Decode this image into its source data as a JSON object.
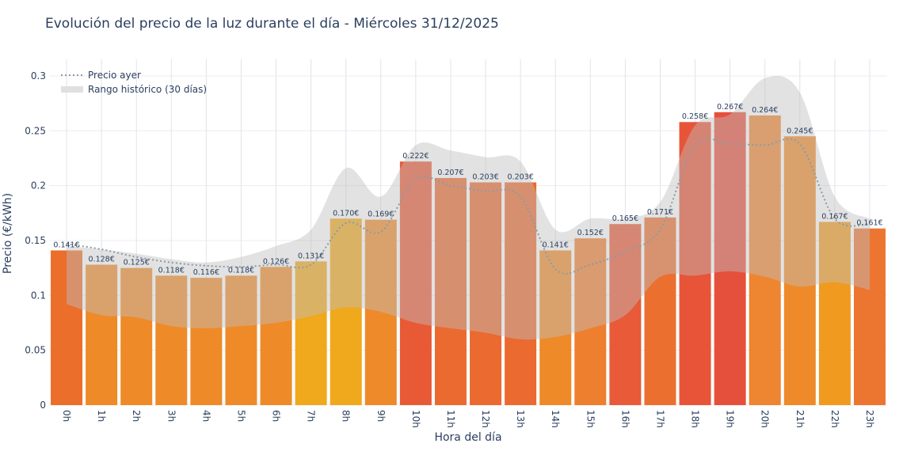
{
  "title": "Evolución del precio de la luz durante el día - Miércoles 31/12/2025",
  "chart_data": {
    "type": "bar",
    "title": "Evolución del precio de la luz durante el día - Miércoles 31/12/2025",
    "xlabel": "Hora del día",
    "ylabel": "Precio (€/kWh)",
    "ylim": [
      0,
      0.31
    ],
    "yticks": [
      0,
      0.05,
      0.1,
      0.15,
      0.2,
      0.25,
      0.3
    ],
    "ytick_labels": [
      "0",
      "0.05",
      "0.1",
      "0.15",
      "0.2",
      "0.25",
      "0.3"
    ],
    "grid": true,
    "legend_position": "top-left",
    "categories": [
      "0h",
      "1h",
      "2h",
      "3h",
      "4h",
      "5h",
      "6h",
      "7h",
      "8h",
      "9h",
      "10h",
      "11h",
      "12h",
      "13h",
      "14h",
      "15h",
      "16h",
      "17h",
      "18h",
      "19h",
      "20h",
      "21h",
      "22h",
      "23h"
    ],
    "values": [
      0.141,
      0.128,
      0.125,
      0.118,
      0.116,
      0.118,
      0.126,
      0.131,
      0.17,
      0.169,
      0.222,
      0.207,
      0.203,
      0.203,
      0.141,
      0.152,
      0.165,
      0.171,
      0.258,
      0.267,
      0.264,
      0.245,
      0.167,
      0.161
    ],
    "data_labels": [
      "0.141€",
      "0.128€",
      "0.125€",
      "0.118€",
      "0.116€",
      "0.118€",
      "0.126€",
      "0.131€",
      "0.170€",
      "0.169€",
      "0.222€",
      "0.207€",
      "0.203€",
      "0.203€",
      "0.141€",
      "0.152€",
      "0.165€",
      "0.171€",
      "0.258€",
      "0.267€",
      "0.264€",
      "0.245€",
      "0.167€",
      "0.161€"
    ],
    "bar_colors": [
      "#EB6E2A",
      "#EF8A28",
      "#EF8A28",
      "#EF8A28",
      "#EF8A28",
      "#EF8A28",
      "#EF8A28",
      "#F0A81C",
      "#F0A81C",
      "#EE8A2A",
      "#E85A35",
      "#EA6A30",
      "#EA6A30",
      "#EA6A30",
      "#EF8A28",
      "#EE7F2E",
      "#E85A38",
      "#EB7030",
      "#E85438",
      "#E5503C",
      "#EE8530",
      "#EE8A2A",
      "#F09A20",
      "#EC7530"
    ],
    "series": [
      {
        "name": "Precio ayer",
        "type": "line",
        "style": "dotted",
        "color": "#8c9aa6",
        "values": [
          0.147,
          0.142,
          0.135,
          0.13,
          0.127,
          0.126,
          0.128,
          0.128,
          0.166,
          0.158,
          0.206,
          0.2,
          0.195,
          0.19,
          0.124,
          0.128,
          0.14,
          0.16,
          0.237,
          0.238,
          0.237,
          0.238,
          0.17,
          0.165
        ]
      },
      {
        "name": "Rango histórico (30 días)",
        "type": "band",
        "color": "#c8c8c8",
        "upper": [
          0.145,
          0.142,
          0.138,
          0.133,
          0.13,
          0.135,
          0.145,
          0.16,
          0.216,
          0.19,
          0.237,
          0.232,
          0.226,
          0.222,
          0.16,
          0.17,
          0.17,
          0.185,
          0.255,
          0.265,
          0.298,
          0.285,
          0.19,
          0.17
        ],
        "lower": [
          0.092,
          0.082,
          0.08,
          0.072,
          0.07,
          0.072,
          0.075,
          0.081,
          0.089,
          0.085,
          0.075,
          0.07,
          0.066,
          0.06,
          0.062,
          0.07,
          0.082,
          0.117,
          0.118,
          0.122,
          0.117,
          0.108,
          0.112,
          0.105
        ]
      }
    ]
  }
}
